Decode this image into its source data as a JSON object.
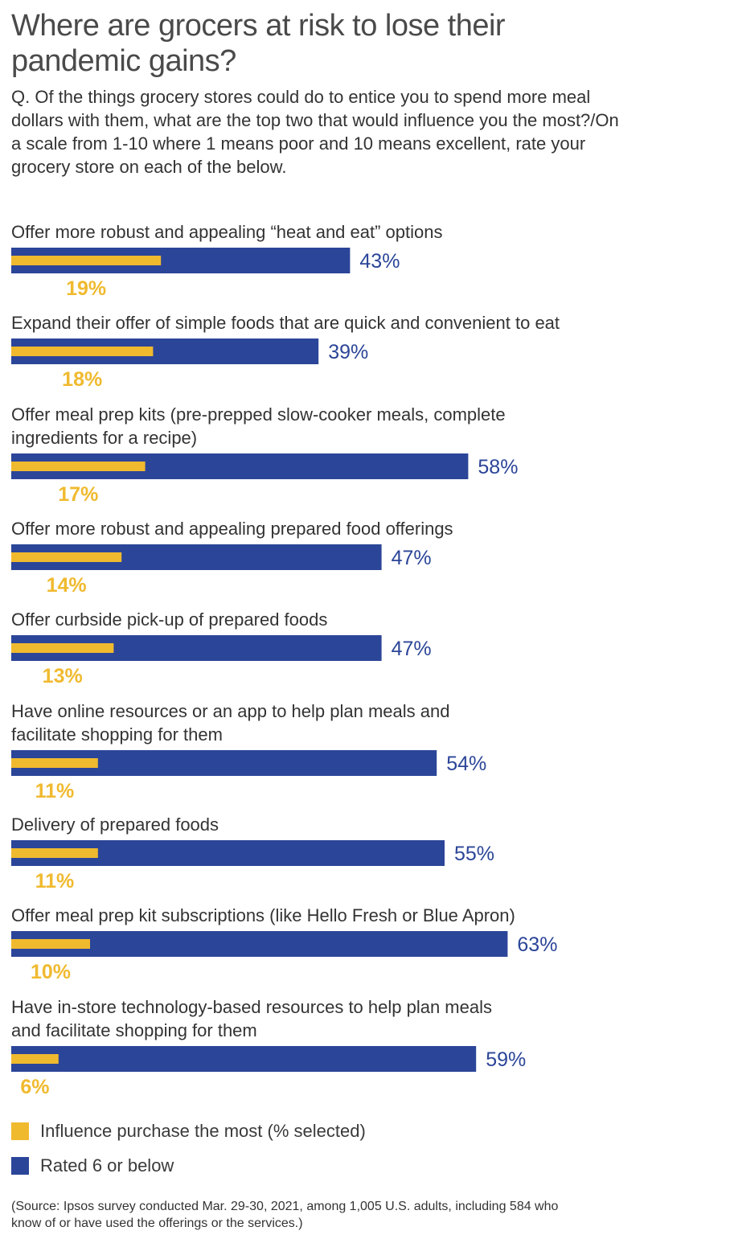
{
  "title": "Where are grocers at risk to lose their pandemic gains?",
  "subtitle": "Q. Of the things grocery stores could do to entice you to spend more meal dollars with them, what are the top two that would influence you the most?/On a scale from 1-10 where 1 means poor and 10 means excellent, rate your grocery store on each of the below.",
  "legend": [
    {
      "label": "Influence purchase the most (% selected)",
      "color": "#F0BA2F"
    },
    {
      "label": "Rated 6 or below",
      "color": "#2B4598"
    }
  ],
  "source": "(Source: Ipsos survey conducted Mar. 29-30, 2021, among 1,005 U.S. adults, including 584 who know of or have used the offerings or the services.)",
  "chart_data": {
    "type": "bar",
    "orientation": "horizontal",
    "categories": [
      [
        "Offer more robust and appealing “heat and eat” options"
      ],
      [
        "Expand their offer of simple foods that are quick and convenient to eat"
      ],
      [
        "Offer meal prep kits (pre-prepped slow-cooker meals, complete",
        "ingredients for a recipe)"
      ],
      [
        "Offer more robust and appealing prepared food offerings"
      ],
      [
        "Offer curbside pick-up of prepared foods"
      ],
      [
        "Have online resources or an app to help plan meals and",
        "facilitate shopping for them"
      ],
      [
        "Delivery of prepared foods"
      ],
      [
        "Offer meal prep kit subscriptions (like Hello Fresh or Blue Apron)"
      ],
      [
        "Have in-store technology-based resources to help plan meals",
        "and facilitate shopping for them"
      ]
    ],
    "series": [
      {
        "name": "Rated 6 or below",
        "color": "#2B4598",
        "values": [
          43,
          39,
          58,
          47,
          47,
          54,
          55,
          63,
          59
        ],
        "labels": [
          "43%",
          "39%",
          "58%",
          "47%",
          "47%",
          "54%",
          "55%",
          "63%",
          "59%"
        ]
      },
      {
        "name": "Influence purchase the most (% selected)",
        "color": "#F0BA2F",
        "values": [
          19,
          18,
          17,
          14,
          13,
          11,
          11,
          10,
          6
        ],
        "labels": [
          "19%",
          "18%",
          "17%",
          "14%",
          "13%",
          "11%",
          "11%",
          "10%",
          "6%"
        ]
      }
    ],
    "xlim": [
      0,
      100
    ],
    "grid": false,
    "legend_position": "bottom-left"
  }
}
